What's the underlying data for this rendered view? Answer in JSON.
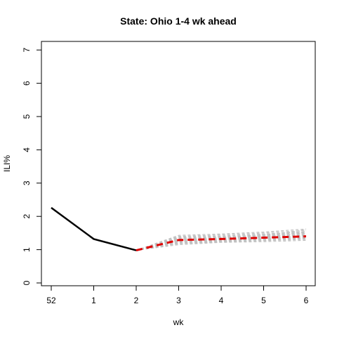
{
  "chart_data": {
    "type": "line",
    "title": "State: Ohio 1-4 wk ahead",
    "xlabel": "wk",
    "ylabel": "ILI%",
    "categories": [
      "52",
      "1",
      "2",
      "3",
      "4",
      "5",
      "6"
    ],
    "ylim": [
      0,
      7
    ],
    "yticks": [
      0,
      1,
      2,
      3,
      4,
      5,
      6,
      7
    ],
    "grid": false,
    "observed": {
      "color": "#000000",
      "values": [
        2.26,
        1.32,
        0.98
      ]
    },
    "forecast_mean": {
      "color": "#e00000",
      "values": [
        0.98,
        1.29,
        1.32,
        1.36,
        1.4
      ]
    },
    "ensemble": {
      "color": "#c0c0c0",
      "start_value": 0.98,
      "trajectories": [
        [
          1.15,
          1.22,
          1.24,
          1.28
        ],
        [
          1.18,
          1.24,
          1.27,
          1.31
        ],
        [
          1.2,
          1.25,
          1.29,
          1.33
        ],
        [
          1.22,
          1.27,
          1.31,
          1.35
        ],
        [
          1.24,
          1.29,
          1.33,
          1.37
        ],
        [
          1.26,
          1.3,
          1.35,
          1.39
        ],
        [
          1.28,
          1.32,
          1.37,
          1.41
        ],
        [
          1.3,
          1.33,
          1.38,
          1.43
        ],
        [
          1.32,
          1.35,
          1.4,
          1.45
        ],
        [
          1.34,
          1.37,
          1.42,
          1.48
        ],
        [
          1.36,
          1.39,
          1.44,
          1.51
        ],
        [
          1.38,
          1.41,
          1.47,
          1.54
        ],
        [
          1.4,
          1.44,
          1.5,
          1.58
        ],
        [
          1.43,
          1.47,
          1.53,
          1.62
        ],
        [
          1.27,
          1.36,
          1.45,
          1.55
        ],
        [
          1.25,
          1.31,
          1.39,
          1.5
        ],
        [
          1.21,
          1.26,
          1.33,
          1.42
        ],
        [
          1.29,
          1.34,
          1.41,
          1.6
        ],
        [
          1.35,
          1.38,
          1.43,
          1.52
        ],
        [
          1.19,
          1.23,
          1.28,
          1.36
        ]
      ]
    }
  }
}
